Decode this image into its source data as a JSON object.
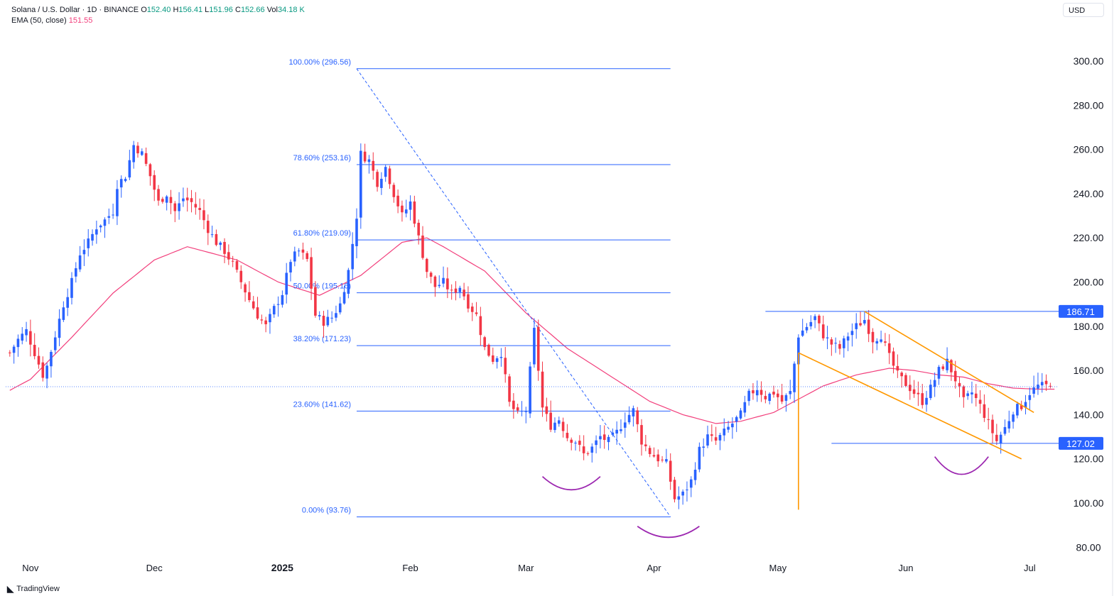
{
  "header": {
    "symbol": "Solana / U.S. Dollar · 1D · BINANCE",
    "open_label": "O",
    "open": "152.40",
    "high_label": "H",
    "high": "156.41",
    "low_label": "L",
    "low": "151.96",
    "close_label": "C",
    "close": "152.66",
    "vol_label": "Vol",
    "vol": "34.18 K",
    "ema_label": "EMA (50, close)",
    "ema_value": "151.55",
    "currency": "USD"
  },
  "footer": {
    "brand": "TradingView",
    "brand_icon": "tradingview-logo-icon"
  },
  "colors": {
    "up": "#2962ff",
    "down": "#f23645",
    "ema": "#f23f7c",
    "fib": "#2962ff",
    "pattern": "#ff9800",
    "arc": "#9c27b0",
    "axis_text": "#131722"
  },
  "chart_data": {
    "type": "candlestick",
    "title": "Solana / U.S. Dollar · 1D · BINANCE",
    "ylim": [
      74,
      318
    ],
    "y_ticks": [
      80,
      100,
      120,
      140,
      160,
      180,
      200,
      220,
      240,
      260,
      280,
      300
    ],
    "x_ticks": [
      {
        "label": "Nov",
        "day": 0,
        "bold": false
      },
      {
        "label": "Dec",
        "day": 30,
        "bold": false
      },
      {
        "label": "2025",
        "day": 61,
        "bold": true
      },
      {
        "label": "Feb",
        "day": 92,
        "bold": false
      },
      {
        "label": "Mar",
        "day": 120,
        "bold": false
      },
      {
        "label": "Apr",
        "day": 151,
        "bold": false
      },
      {
        "label": "May",
        "day": 181,
        "bold": false
      },
      {
        "label": "Jun",
        "day": 212,
        "bold": false
      },
      {
        "label": "Jul",
        "day": 242,
        "bold": false
      }
    ],
    "days_range": [
      -6,
      249
    ],
    "price_keypoints": [
      [
        -5,
        168
      ],
      [
        -3,
        174
      ],
      [
        -1,
        178
      ],
      [
        1,
        168
      ],
      [
        3,
        158
      ],
      [
        4,
        162
      ],
      [
        6,
        176
      ],
      [
        8,
        190
      ],
      [
        10,
        200
      ],
      [
        12,
        213
      ],
      [
        14,
        218
      ],
      [
        16,
        225
      ],
      [
        18,
        228
      ],
      [
        20,
        232
      ],
      [
        21,
        244
      ],
      [
        23,
        248
      ],
      [
        25,
        262
      ],
      [
        27,
        258
      ],
      [
        29,
        248
      ],
      [
        31,
        236
      ],
      [
        33,
        240
      ],
      [
        35,
        232
      ],
      [
        37,
        238
      ],
      [
        39,
        236
      ],
      [
        41,
        232
      ],
      [
        43,
        224
      ],
      [
        45,
        218
      ],
      [
        47,
        214
      ],
      [
        49,
        208
      ],
      [
        51,
        200
      ],
      [
        53,
        192
      ],
      [
        55,
        185
      ],
      [
        57,
        180
      ],
      [
        59,
        188
      ],
      [
        61,
        195
      ],
      [
        63,
        210
      ],
      [
        65,
        214
      ],
      [
        67,
        210
      ],
      [
        69,
        185
      ],
      [
        71,
        182
      ],
      [
        73,
        184
      ],
      [
        75,
        190
      ],
      [
        77,
        205
      ],
      [
        79,
        230
      ],
      [
        80,
        258
      ],
      [
        82,
        255
      ],
      [
        84,
        245
      ],
      [
        86,
        252
      ],
      [
        88,
        240
      ],
      [
        90,
        230
      ],
      [
        92,
        236
      ],
      [
        94,
        220
      ],
      [
        96,
        205
      ],
      [
        98,
        198
      ],
      [
        100,
        200
      ],
      [
        102,
        195
      ],
      [
        104,
        198
      ],
      [
        106,
        190
      ],
      [
        108,
        185
      ],
      [
        110,
        170
      ],
      [
        112,
        165
      ],
      [
        114,
        168
      ],
      [
        116,
        145
      ],
      [
        118,
        140
      ],
      [
        120,
        142
      ],
      [
        122,
        178
      ],
      [
        124,
        143
      ],
      [
        126,
        135
      ],
      [
        128,
        138
      ],
      [
        130,
        130
      ],
      [
        132,
        128
      ],
      [
        134,
        122
      ],
      [
        136,
        125
      ],
      [
        138,
        130
      ],
      [
        140,
        128
      ],
      [
        142,
        132
      ],
      [
        144,
        138
      ],
      [
        146,
        142
      ],
      [
        148,
        128
      ],
      [
        150,
        123
      ],
      [
        152,
        120
      ],
      [
        154,
        118
      ],
      [
        156,
        102
      ],
      [
        158,
        104
      ],
      [
        160,
        110
      ],
      [
        162,
        124
      ],
      [
        164,
        130
      ],
      [
        166,
        128
      ],
      [
        168,
        132
      ],
      [
        170,
        136
      ],
      [
        172,
        140
      ],
      [
        174,
        149
      ],
      [
        176,
        152
      ],
      [
        178,
        148
      ],
      [
        180,
        150
      ],
      [
        182,
        146
      ],
      [
        184,
        150
      ],
      [
        186,
        176
      ],
      [
        188,
        180
      ],
      [
        190,
        184
      ],
      [
        192,
        176
      ],
      [
        194,
        172
      ],
      [
        196,
        170
      ],
      [
        198,
        176
      ],
      [
        200,
        180
      ],
      [
        202,
        183
      ],
      [
        204,
        174
      ],
      [
        206,
        176
      ],
      [
        208,
        166
      ],
      [
        210,
        158
      ],
      [
        212,
        154
      ],
      [
        214,
        150
      ],
      [
        216,
        146
      ],
      [
        218,
        152
      ],
      [
        220,
        160
      ],
      [
        222,
        164
      ],
      [
        224,
        156
      ],
      [
        226,
        146
      ],
      [
        228,
        150
      ],
      [
        230,
        144
      ],
      [
        232,
        136
      ],
      [
        234,
        128
      ],
      [
        236,
        134
      ],
      [
        238,
        142
      ],
      [
        240,
        144
      ],
      [
        242,
        150
      ],
      [
        244,
        153
      ],
      [
        246,
        153
      ],
      [
        247,
        152.66
      ]
    ],
    "ema": {
      "name": "EMA (50, close)",
      "keypoints": [
        [
          -5,
          151
        ],
        [
          0,
          156
        ],
        [
          10,
          175
        ],
        [
          20,
          195
        ],
        [
          30,
          210
        ],
        [
          38,
          216
        ],
        [
          50,
          210
        ],
        [
          60,
          200
        ],
        [
          70,
          194
        ],
        [
          80,
          203
        ],
        [
          90,
          218
        ],
        [
          96,
          220
        ],
        [
          100,
          216
        ],
        [
          110,
          205
        ],
        [
          120,
          186
        ],
        [
          130,
          170
        ],
        [
          140,
          158
        ],
        [
          150,
          146
        ],
        [
          158,
          140
        ],
        [
          166,
          136
        ],
        [
          172,
          137
        ],
        [
          180,
          141
        ],
        [
          186,
          147
        ],
        [
          192,
          153
        ],
        [
          200,
          158
        ],
        [
          208,
          161
        ],
        [
          214,
          160
        ],
        [
          220,
          158
        ],
        [
          226,
          157
        ],
        [
          232,
          154
        ],
        [
          238,
          152
        ],
        [
          244,
          151.55
        ],
        [
          248,
          151.55
        ]
      ]
    },
    "fibonacci": {
      "day_start": 79,
      "day_end": 155,
      "levels": [
        {
          "ratio": "100.00%",
          "price": 296.56,
          "label": "100.00% (296.56)"
        },
        {
          "ratio": "78.60%",
          "price": 253.16,
          "label": "78.60% (253.16)"
        },
        {
          "ratio": "61.80%",
          "price": 219.09,
          "label": "61.80% (219.09)"
        },
        {
          "ratio": "50.00%",
          "price": 195.16,
          "label": "50.00% (195.16)"
        },
        {
          "ratio": "38.20%",
          "price": 171.23,
          "label": "38.20% (171.23)"
        },
        {
          "ratio": "23.60%",
          "price": 141.62,
          "label": "23.60% (141.62)"
        },
        {
          "ratio": "0.00%",
          "price": 93.76,
          "label": "0.00% (93.76)"
        }
      ],
      "trend_line": [
        [
          79,
          296.56
        ],
        [
          155,
          93.76
        ]
      ]
    },
    "horizontal_lines": [
      {
        "price": 186.71,
        "day_start": 178,
        "label": "186.71"
      },
      {
        "price": 127.02,
        "day_start": 194,
        "label": "127.02"
      }
    ],
    "last_price": 152.66,
    "falling_wedge": {
      "pole": [
        [
          186,
          97
        ],
        [
          186,
          168
        ]
      ],
      "upper": [
        [
          202,
          186.71
        ],
        [
          243,
          141
        ]
      ],
      "lower": [
        [
          186,
          168
        ],
        [
          240,
          120
        ]
      ]
    },
    "arcs": [
      {
        "day_start": 124,
        "day_end": 138,
        "price_top": 112,
        "price_bottom": 106
      },
      {
        "day_start": 147,
        "day_end": 162,
        "price_top": 89.5,
        "price_bottom": 84.5
      },
      {
        "day_start": 219,
        "day_end": 232,
        "price_top": 121,
        "price_bottom": 113
      }
    ]
  }
}
